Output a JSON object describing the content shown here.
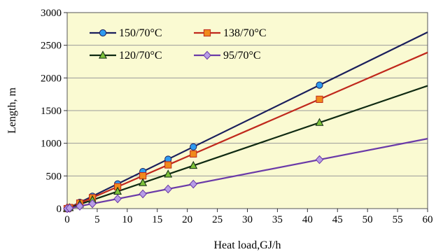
{
  "chart_data": {
    "type": "line",
    "xlabel": "Heat load,GJ/h",
    "ylabel": "Length, m",
    "xlim": [
      0,
      60
    ],
    "ylim": [
      0,
      3000
    ],
    "xticks": [
      "0",
      "5",
      "10",
      "15",
      "20",
      "25",
      "30",
      "35",
      "40",
      "45",
      "50",
      "55",
      "60"
    ],
    "yticks": [
      "0",
      "500",
      "1000",
      "1500",
      "2000",
      "2500",
      "3000"
    ],
    "grid": "horizontal",
    "plot_background": "#fafad2",
    "legend_position": "top-left",
    "series": [
      {
        "name": "150/70°C",
        "color": "#1a1f5c",
        "marker": "circle",
        "marker_fill": "#2e9bf0",
        "line_points": [
          [
            0,
            0
          ],
          [
            60,
            2700
          ]
        ],
        "points": [
          [
            0,
            0
          ],
          [
            0.4,
            18
          ],
          [
            2.1,
            95
          ],
          [
            4.2,
            189
          ],
          [
            8.4,
            378
          ],
          [
            12.6,
            567
          ],
          [
            16.8,
            756
          ],
          [
            21,
            945
          ],
          [
            42,
            1890
          ]
        ]
      },
      {
        "name": "138/70°C",
        "color": "#c0281c",
        "marker": "square",
        "marker_fill": "#f08a1c",
        "line_points": [
          [
            0,
            0
          ],
          [
            60,
            2390
          ]
        ],
        "points": [
          [
            0,
            0
          ],
          [
            0.4,
            16
          ],
          [
            2.1,
            84
          ],
          [
            4.2,
            167
          ],
          [
            8.4,
            335
          ],
          [
            12.6,
            502
          ],
          [
            16.8,
            669
          ],
          [
            21,
            837
          ],
          [
            42,
            1673
          ]
        ]
      },
      {
        "name": "120/70°C",
        "color": "#0f2a12",
        "marker": "triangle",
        "marker_fill": "#7dc23a",
        "line_points": [
          [
            0,
            0
          ],
          [
            60,
            1880
          ]
        ],
        "points": [
          [
            0,
            0
          ],
          [
            0.4,
            13
          ],
          [
            2.1,
            66
          ],
          [
            4.2,
            132
          ],
          [
            8.4,
            263
          ],
          [
            12.6,
            395
          ],
          [
            16.8,
            526
          ],
          [
            21,
            658
          ],
          [
            42,
            1316
          ]
        ]
      },
      {
        "name": "95/70°C",
        "color": "#6a3aa8",
        "marker": "diamond",
        "marker_fill": "#b79de6",
        "line_points": [
          [
            0,
            0
          ],
          [
            60,
            1070
          ]
        ],
        "points": [
          [
            0,
            0
          ],
          [
            0.4,
            7
          ],
          [
            2.1,
            37
          ],
          [
            4.2,
            75
          ],
          [
            8.4,
            150
          ],
          [
            12.6,
            225
          ],
          [
            16.8,
            300
          ],
          [
            21,
            375
          ],
          [
            42,
            749
          ]
        ]
      }
    ]
  }
}
